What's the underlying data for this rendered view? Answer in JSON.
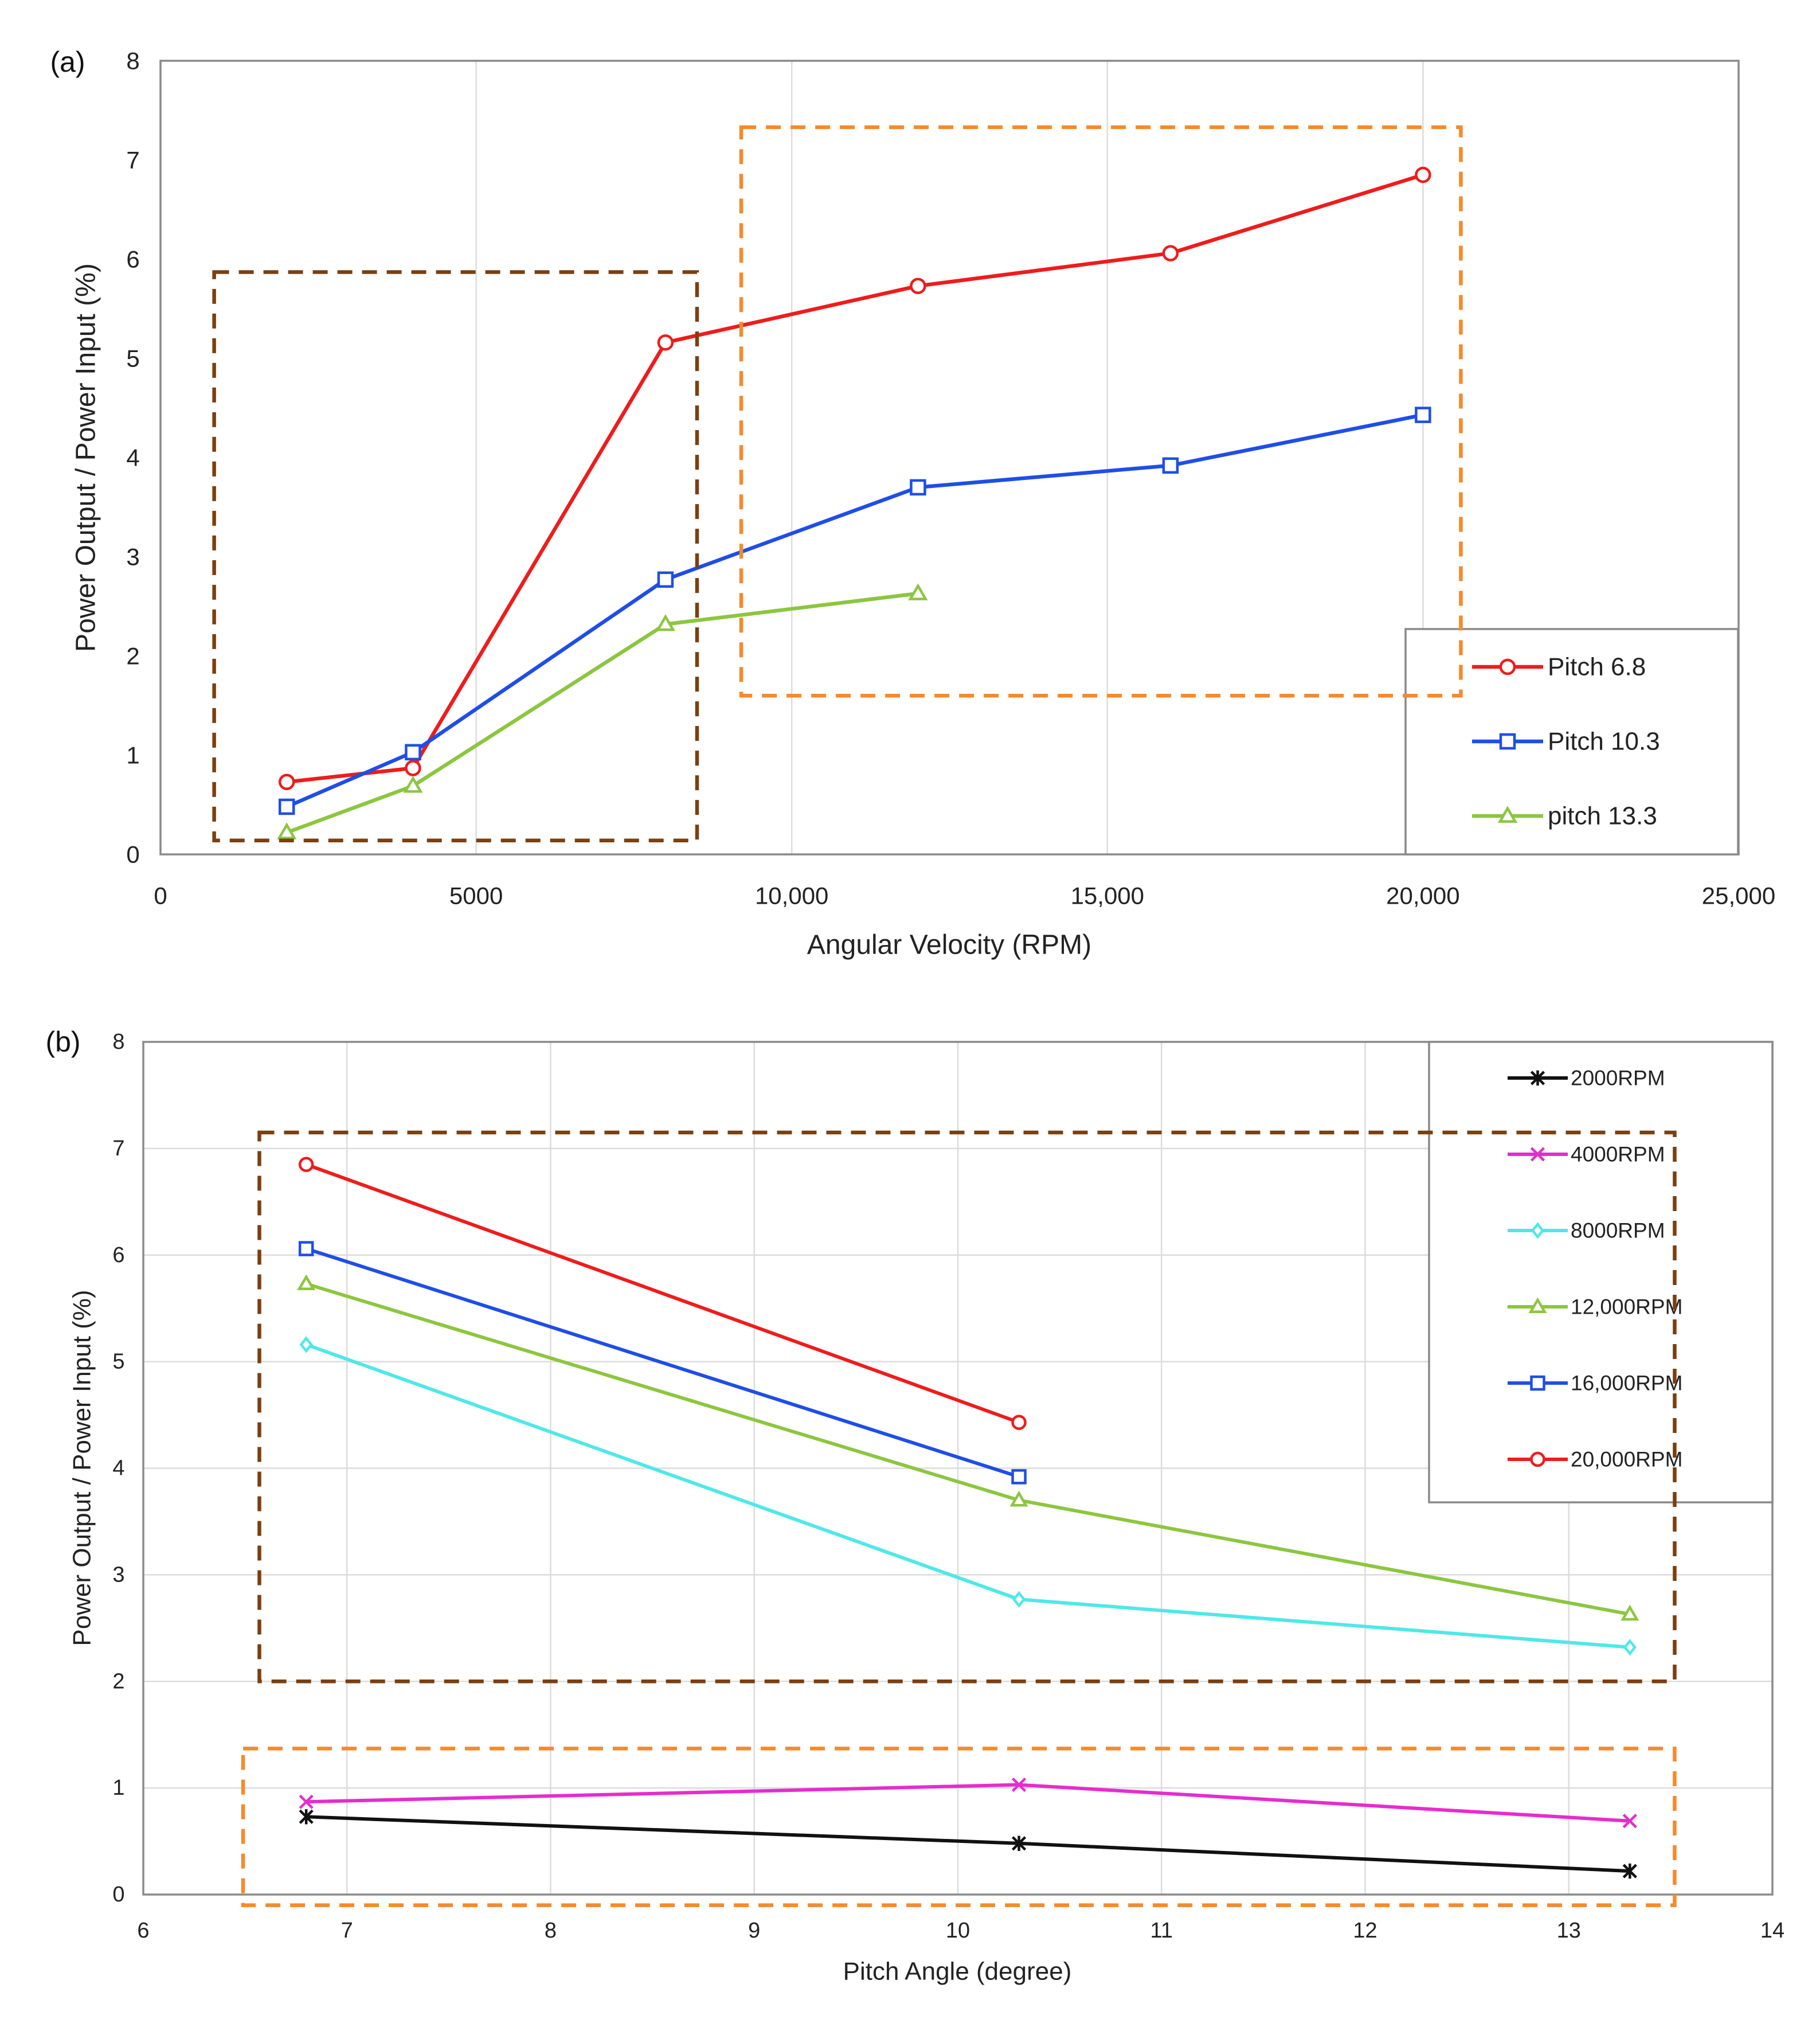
{
  "chart_data": [
    {
      "panel": "(a)",
      "type": "line",
      "xlabel": "Angular Velocity (RPM)",
      "ylabel": "Power Output / Power Input (%)",
      "xlim": [
        0,
        25000
      ],
      "ylim": [
        0,
        8
      ],
      "xticks": [
        0,
        5000,
        10000,
        15000,
        20000,
        25000
      ],
      "xtick_labels": [
        "0",
        "5000",
        "10,000",
        "15,000",
        "20,000",
        "25,000"
      ],
      "yticks": [
        0,
        1,
        2,
        3,
        4,
        5,
        6,
        7,
        8
      ],
      "ytick_labels": [
        "0",
        "1",
        "2",
        "3",
        "4",
        "5",
        "6",
        "7",
        "8"
      ],
      "grid": "vertical",
      "legend_position": "bottom-right",
      "series": [
        {
          "name": "Pitch 6.8",
          "color": "#ee1c1c",
          "marker": "circle",
          "x": [
            2000,
            4000,
            8000,
            12000,
            16000,
            20000
          ],
          "y": [
            0.73,
            0.87,
            5.16,
            5.73,
            6.06,
            6.85
          ]
        },
        {
          "name": "Pitch 10.3",
          "color": "#1f4ee6",
          "marker": "square",
          "x": [
            2000,
            4000,
            8000,
            12000,
            16000,
            20000
          ],
          "y": [
            0.48,
            1.03,
            2.77,
            3.7,
            3.92,
            4.43
          ]
        },
        {
          "name": "pitch 13.3",
          "color": "#8cc63f",
          "marker": "triangle",
          "x": [
            2000,
            4000,
            8000,
            12000
          ],
          "y": [
            0.22,
            0.69,
            2.32,
            2.63
          ]
        }
      ],
      "highlight_boxes": [
        {
          "color": "#7b3f10",
          "x": [
            850,
            8500
          ],
          "y": [
            0.14,
            5.87
          ]
        },
        {
          "color": "#f58a2c",
          "x": [
            9200,
            20600
          ],
          "y": [
            1.6,
            7.33
          ]
        }
      ]
    },
    {
      "panel": "(b)",
      "type": "line",
      "xlabel": "Pitch Angle (degree)",
      "ylabel": "Power Output / Power Input (%)",
      "xlim": [
        6,
        14
      ],
      "ylim": [
        0,
        8
      ],
      "xticks": [
        6,
        7,
        8,
        9,
        10,
        11,
        12,
        13,
        14
      ],
      "xtick_labels": [
        "6",
        "7",
        "8",
        "9",
        "10",
        "11",
        "12",
        "13",
        "14"
      ],
      "yticks": [
        0,
        1,
        2,
        3,
        4,
        5,
        6,
        7,
        8
      ],
      "ytick_labels": [
        "0",
        "1",
        "2",
        "3",
        "4",
        "5",
        "6",
        "7",
        "8"
      ],
      "grid": "both",
      "legend_position": "top-right",
      "series": [
        {
          "name": "2000RPM",
          "color": "#111111",
          "marker": "star",
          "x": [
            6.8,
            10.3,
            13.3
          ],
          "y": [
            0.73,
            0.48,
            0.22
          ]
        },
        {
          "name": "4000RPM",
          "color": "#e62ccf",
          "marker": "x",
          "x": [
            6.8,
            10.3,
            13.3
          ],
          "y": [
            0.87,
            1.03,
            0.69
          ]
        },
        {
          "name": "8000RPM",
          "color": "#4fe8e8",
          "marker": "diamond",
          "x": [
            6.8,
            10.3,
            13.3
          ],
          "y": [
            5.16,
            2.77,
            2.32
          ]
        },
        {
          "name": "12,000RPM",
          "color": "#8cc63f",
          "marker": "triangle",
          "x": [
            6.8,
            10.3,
            13.3
          ],
          "y": [
            5.73,
            3.7,
            2.63
          ]
        },
        {
          "name": "16,000RPM",
          "color": "#1f4ee6",
          "marker": "square",
          "x": [
            6.8,
            10.3
          ],
          "y": [
            6.06,
            3.92
          ]
        },
        {
          "name": "20,000RPM",
          "color": "#ee1c1c",
          "marker": "circle",
          "x": [
            6.8,
            10.3
          ],
          "y": [
            6.85,
            4.43
          ]
        }
      ],
      "highlight_boxes": [
        {
          "color": "#7b3f10",
          "x": [
            6.57,
            13.52
          ],
          "y": [
            2.0,
            7.15
          ]
        },
        {
          "color": "#f58a2c",
          "x": [
            6.49,
            13.52
          ],
          "y": [
            -0.1,
            1.37
          ]
        }
      ]
    }
  ]
}
